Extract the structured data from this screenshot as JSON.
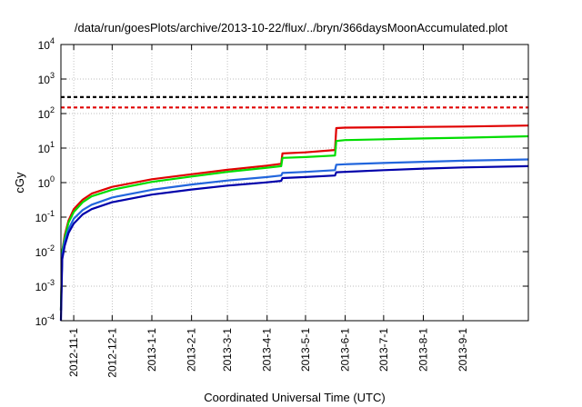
{
  "chart_data": {
    "type": "line",
    "title": "/data/run/goesPlots/archive/2013-10-22/flux/../bryn/366daysMoonAccumulated.plot",
    "xlabel": "Coordinated Universal Time (UTC)",
    "ylabel": "cGy",
    "yscale": "log",
    "ylim": [
      0.0001,
      10000
    ],
    "xlim": [
      "2012-10-22",
      "2013-10-22"
    ],
    "grid": true,
    "legend": "none",
    "x_ticks": [
      "2012-11-1",
      "2012-12-1",
      "2013-1-1",
      "2013-2-1",
      "2013-3-1",
      "2013-4-1",
      "2013-5-1",
      "2013-6-1",
      "2013-7-1",
      "2013-8-1",
      "2013-9-1"
    ],
    "y_ticks": [
      {
        "value": 0.0001,
        "base": "10",
        "exp": "-4"
      },
      {
        "value": 0.001,
        "base": "10",
        "exp": "-3"
      },
      {
        "value": 0.01,
        "base": "10",
        "exp": "-2"
      },
      {
        "value": 0.1,
        "base": "10",
        "exp": "-1"
      },
      {
        "value": 1,
        "base": "10",
        "exp": "0"
      },
      {
        "value": 10,
        "base": "10",
        "exp": "1"
      },
      {
        "value": 100,
        "base": "10",
        "exp": "2"
      },
      {
        "value": 1000,
        "base": "10",
        "exp": "3"
      },
      {
        "value": 10000,
        "base": "10",
        "exp": "4"
      }
    ],
    "series": [
      {
        "color": "#e00000",
        "style": "solid",
        "points": [
          [
            "2012-10-22",
            0.0002
          ],
          [
            "2012-10-23",
            0.01
          ],
          [
            "2012-10-25",
            0.03
          ],
          [
            "2012-10-28",
            0.08
          ],
          [
            "2012-11-1",
            0.17
          ],
          [
            "2012-11-8",
            0.32
          ],
          [
            "2012-11-15",
            0.48
          ],
          [
            "2012-12-1",
            0.75
          ],
          [
            "2013-1-1",
            1.25
          ],
          [
            "2013-2-1",
            1.75
          ],
          [
            "2013-3-1",
            2.35
          ],
          [
            "2013-4-1",
            3.1
          ],
          [
            "2013-4-12",
            3.5
          ],
          [
            "2013-4-13",
            7.0
          ],
          [
            "2013-5-1",
            7.5
          ],
          [
            "2013-5-24",
            8.8
          ],
          [
            "2013-5-25",
            38
          ],
          [
            "2013-6-1",
            39
          ],
          [
            "2013-7-1",
            40
          ],
          [
            "2013-8-1",
            41
          ],
          [
            "2013-9-1",
            42
          ],
          [
            "2013-10-22",
            45
          ]
        ]
      },
      {
        "color": "#00dd00",
        "style": "solid",
        "points": [
          [
            "2012-10-22",
            0.0002
          ],
          [
            "2012-10-23",
            0.01
          ],
          [
            "2012-10-25",
            0.025
          ],
          [
            "2012-10-28",
            0.07
          ],
          [
            "2012-11-1",
            0.14
          ],
          [
            "2012-11-8",
            0.27
          ],
          [
            "2012-11-15",
            0.4
          ],
          [
            "2012-12-1",
            0.62
          ],
          [
            "2013-1-1",
            1.05
          ],
          [
            "2013-2-1",
            1.5
          ],
          [
            "2013-3-1",
            2.05
          ],
          [
            "2013-4-1",
            2.7
          ],
          [
            "2013-4-12",
            3.0
          ],
          [
            "2013-4-13",
            5.2
          ],
          [
            "2013-5-1",
            5.5
          ],
          [
            "2013-5-24",
            6.1
          ],
          [
            "2013-5-25",
            16
          ],
          [
            "2013-6-1",
            17
          ],
          [
            "2013-7-1",
            18
          ],
          [
            "2013-8-1",
            19
          ],
          [
            "2013-9-1",
            20
          ],
          [
            "2013-10-22",
            22
          ]
        ]
      },
      {
        "color": "#2266dd",
        "style": "solid",
        "points": [
          [
            "2012-10-22",
            0.0002
          ],
          [
            "2012-10-23",
            0.008
          ],
          [
            "2012-10-25",
            0.02
          ],
          [
            "2012-10-28",
            0.045
          ],
          [
            "2012-11-1",
            0.09
          ],
          [
            "2012-11-8",
            0.16
          ],
          [
            "2012-11-15",
            0.23
          ],
          [
            "2012-12-1",
            0.37
          ],
          [
            "2013-1-1",
            0.62
          ],
          [
            "2013-2-1",
            0.88
          ],
          [
            "2013-3-1",
            1.15
          ],
          [
            "2013-4-1",
            1.45
          ],
          [
            "2013-4-12",
            1.6
          ],
          [
            "2013-4-13",
            1.9
          ],
          [
            "2013-5-1",
            2.05
          ],
          [
            "2013-5-24",
            2.3
          ],
          [
            "2013-5-25",
            3.3
          ],
          [
            "2013-6-1",
            3.4
          ],
          [
            "2013-7-1",
            3.7
          ],
          [
            "2013-8-1",
            4.0
          ],
          [
            "2013-9-1",
            4.3
          ],
          [
            "2013-10-22",
            4.7
          ]
        ]
      },
      {
        "color": "#0000aa",
        "style": "solid",
        "points": [
          [
            "2012-10-22",
            0.0001
          ],
          [
            "2012-10-23",
            0.006
          ],
          [
            "2012-10-25",
            0.015
          ],
          [
            "2012-10-28",
            0.035
          ],
          [
            "2012-11-1",
            0.065
          ],
          [
            "2012-11-8",
            0.12
          ],
          [
            "2012-11-15",
            0.17
          ],
          [
            "2012-12-1",
            0.27
          ],
          [
            "2013-1-1",
            0.45
          ],
          [
            "2013-2-1",
            0.63
          ],
          [
            "2013-3-1",
            0.82
          ],
          [
            "2013-4-1",
            1.02
          ],
          [
            "2013-4-12",
            1.12
          ],
          [
            "2013-4-13",
            1.35
          ],
          [
            "2013-5-1",
            1.45
          ],
          [
            "2013-5-24",
            1.6
          ],
          [
            "2013-5-25",
            2.0
          ],
          [
            "2013-6-1",
            2.05
          ],
          [
            "2013-7-1",
            2.3
          ],
          [
            "2013-8-1",
            2.55
          ],
          [
            "2013-9-1",
            2.75
          ],
          [
            "2013-10-22",
            3.0
          ]
        ]
      },
      {
        "color": "#000000",
        "style": "dashed",
        "points": [
          [
            "2012-10-22",
            300
          ],
          [
            "2013-10-22",
            300
          ]
        ]
      },
      {
        "color": "#e00000",
        "style": "dashed",
        "points": [
          [
            "2012-10-22",
            150
          ],
          [
            "2013-10-22",
            150
          ]
        ]
      }
    ]
  }
}
